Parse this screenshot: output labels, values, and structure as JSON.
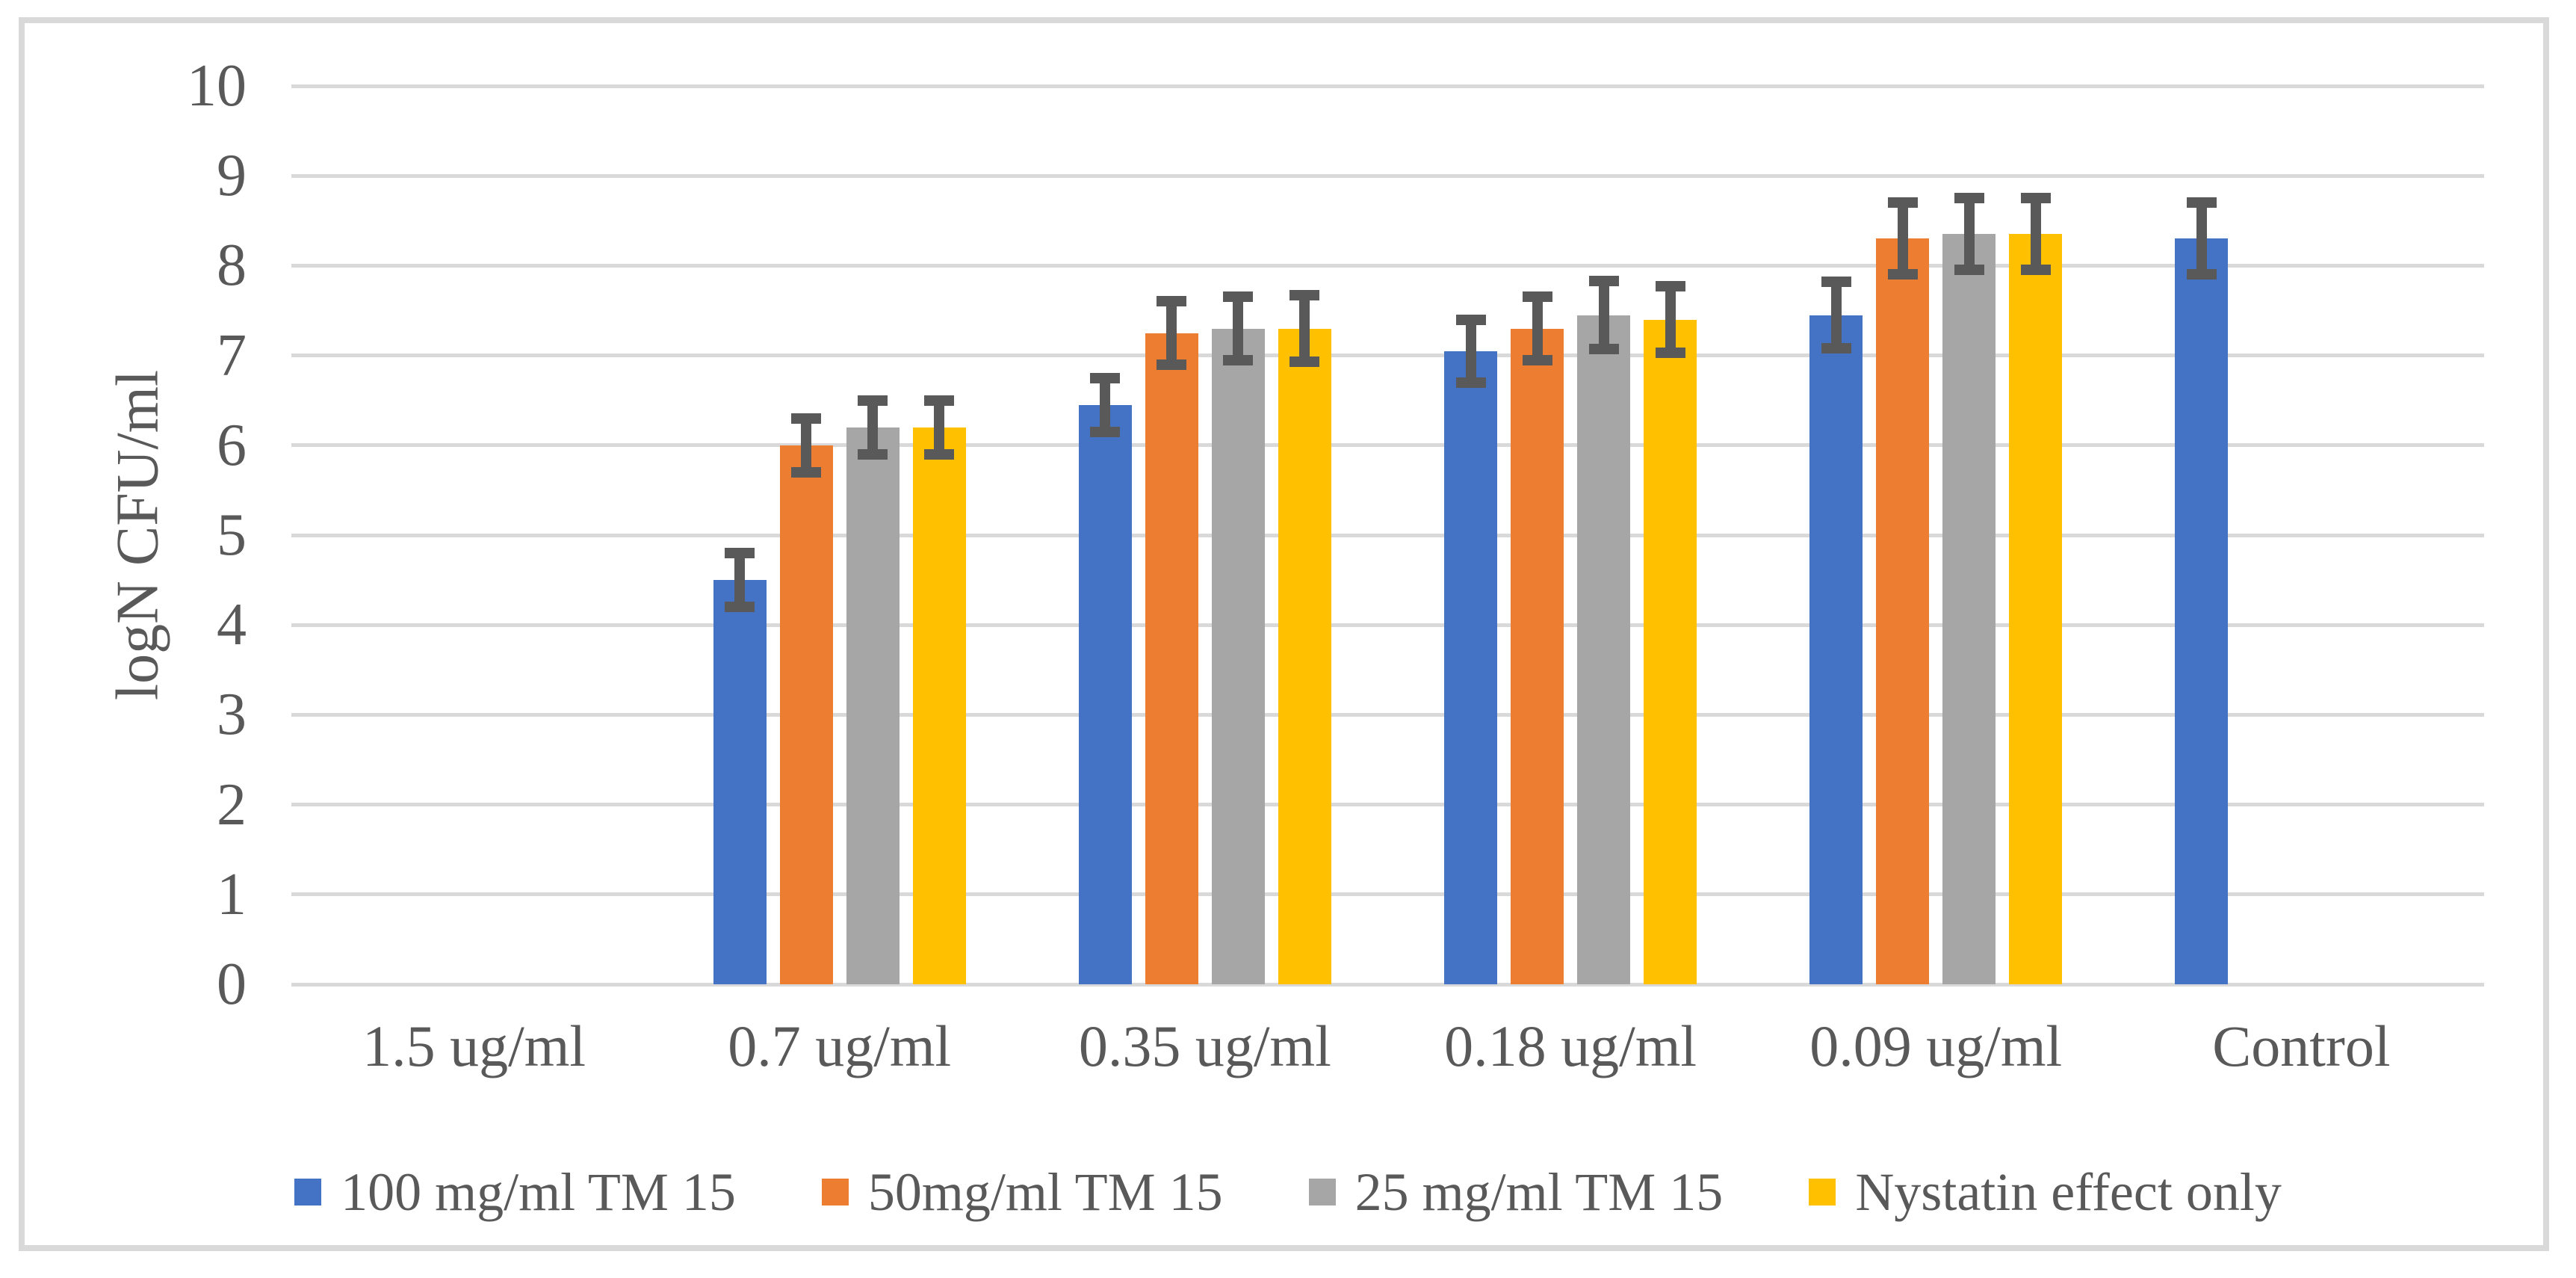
{
  "chart_data": {
    "type": "bar",
    "title": "",
    "xlabel": "",
    "ylabel": "logN CFU/ml",
    "ylim": [
      0,
      10
    ],
    "yticks": [
      0,
      1,
      2,
      3,
      4,
      5,
      6,
      7,
      8,
      9,
      10
    ],
    "grid": true,
    "legend_position": "bottom",
    "categories": [
      "1.5 ug/ml",
      "0.7 ug/ml",
      "0.35 ug/ml",
      "0.18 ug/ml",
      "0.09 ug/ml",
      "Control"
    ],
    "series": [
      {
        "name": "100 mg/ml TM 15",
        "color": "#4472C4",
        "values": [
          0,
          4.5,
          6.45,
          7.05,
          7.45,
          8.3
        ],
        "errors": [
          null,
          0.3,
          0.3,
          0.35,
          0.37,
          0.4
        ]
      },
      {
        "name": "50mg/ml TM 15",
        "color": "#ED7D31",
        "values": [
          0,
          6.0,
          7.25,
          7.3,
          8.3,
          null
        ],
        "errors": [
          null,
          0.3,
          0.35,
          0.35,
          0.4,
          null
        ]
      },
      {
        "name": "25 mg/ml TM 15",
        "color": "#A6A6A6",
        "values": [
          0,
          6.2,
          7.3,
          7.45,
          8.35,
          null
        ],
        "errors": [
          null,
          0.3,
          0.35,
          0.38,
          0.4,
          null
        ]
      },
      {
        "name": "Nystatin effect only",
        "color": "#FFC000",
        "values": [
          0,
          6.2,
          7.3,
          7.4,
          8.35,
          null
        ],
        "errors": [
          null,
          0.3,
          0.37,
          0.37,
          0.4,
          null
        ]
      }
    ],
    "error_bar_color": "#595959",
    "gridline_color": "#D9D9D9",
    "axis_text_color": "#595959",
    "plot_border_color": "#D9D9D9"
  }
}
